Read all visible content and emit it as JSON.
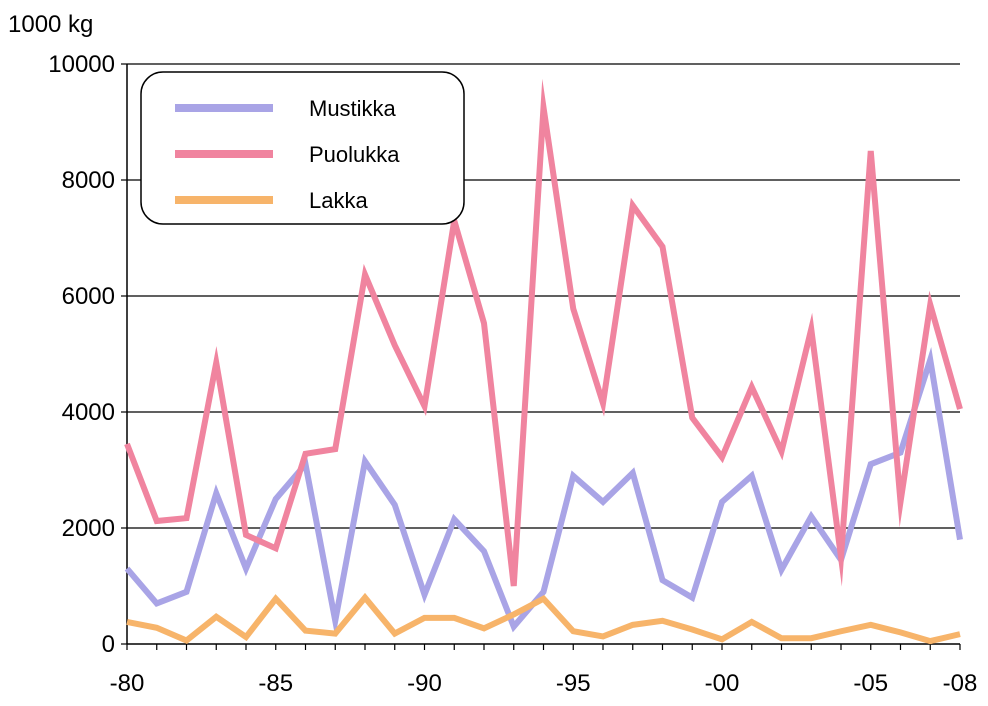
{
  "chart_data": {
    "type": "line",
    "unit_label": "1000 kg",
    "x": [
      1980,
      1981,
      1982,
      1983,
      1984,
      1985,
      1986,
      1987,
      1988,
      1989,
      1990,
      1991,
      1992,
      1993,
      1994,
      1995,
      1996,
      1997,
      1998,
      1999,
      2000,
      2001,
      2002,
      2003,
      2004,
      2005,
      2006,
      2007,
      2008
    ],
    "xtick_values": [
      1980,
      1985,
      1990,
      1995,
      2000,
      2005,
      2008
    ],
    "xtick_labels": [
      "-80",
      "-85",
      "-90",
      "-95",
      "-00",
      "-05",
      "-08"
    ],
    "ylim": [
      0,
      10000
    ],
    "ytick_values": [
      0,
      2000,
      4000,
      6000,
      8000,
      10000
    ],
    "ytick_labels": [
      "0",
      "2000",
      "4000",
      "6000",
      "8000",
      "10000"
    ],
    "grid": true,
    "legend_position": "top-left",
    "series": [
      {
        "name": "Mustikka",
        "color": "#a9a4e6",
        "values": [
          1300,
          700,
          900,
          2600,
          1300,
          2500,
          3100,
          400,
          3150,
          2400,
          850,
          2150,
          1600,
          300,
          900,
          2900,
          2450,
          2950,
          1100,
          800,
          2450,
          2900,
          1280,
          2200,
          1450,
          3100,
          3300,
          4900,
          1800
        ]
      },
      {
        "name": "Puolukka",
        "color": "#f0849f",
        "values": [
          3450,
          2120,
          2170,
          4850,
          1880,
          1650,
          3280,
          3360,
          6370,
          5150,
          4100,
          7300,
          5530,
          1000,
          9250,
          5780,
          4150,
          7560,
          6850,
          3900,
          3220,
          4430,
          3320,
          5430,
          1500,
          8500,
          2450,
          5850,
          4050
        ]
      },
      {
        "name": "Lakka",
        "color": "#f7b46a",
        "values": [
          380,
          280,
          60,
          470,
          120,
          780,
          230,
          180,
          800,
          180,
          450,
          450,
          270,
          510,
          780,
          220,
          130,
          330,
          400,
          250,
          80,
          380,
          100,
          100,
          220,
          330,
          200,
          50,
          170
        ]
      }
    ]
  }
}
